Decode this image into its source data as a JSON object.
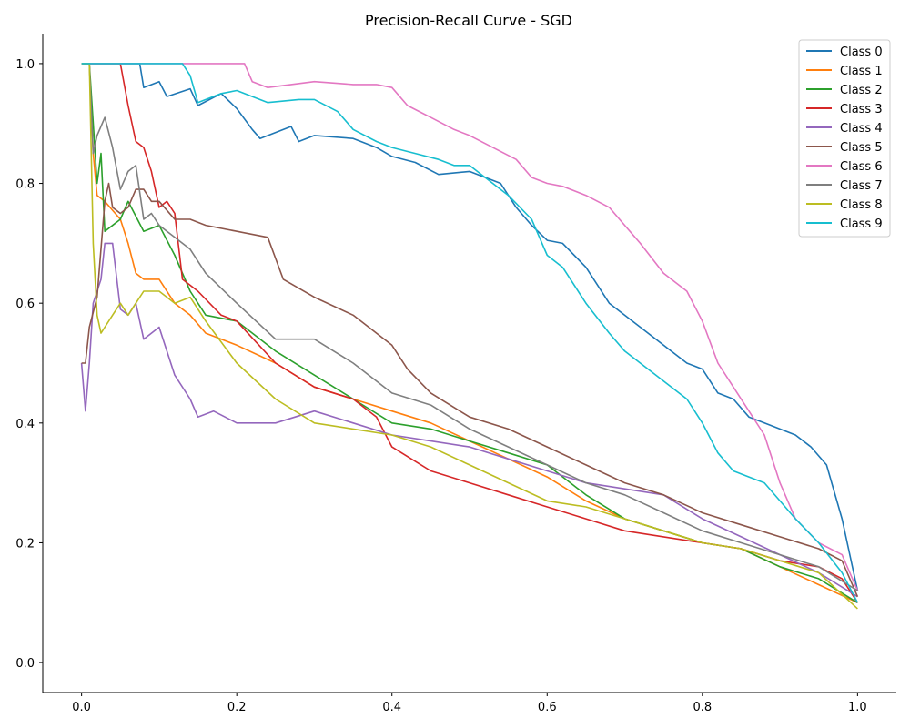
{
  "chart_data": {
    "type": "line",
    "title": "Precision-Recall Curve - SGD",
    "xlabel": "",
    "ylabel": "",
    "xlim": [
      -0.05,
      1.05
    ],
    "ylim": [
      -0.05,
      1.05
    ],
    "xticks": [
      0.0,
      0.2,
      0.4,
      0.6,
      0.8,
      1.0
    ],
    "xtick_labels": [
      "0.0",
      "0.2",
      "0.4",
      "0.6",
      "0.8",
      "1.0"
    ],
    "yticks": [
      0.0,
      0.2,
      0.4,
      0.6,
      0.8,
      1.0
    ],
    "ytick_labels": [
      "0.0",
      "0.2",
      "0.4",
      "0.6",
      "0.8",
      "1.0"
    ],
    "grid": false,
    "legend_position": "top-right",
    "series": [
      {
        "name": "Class 0",
        "color": "#1f77b4",
        "x": [
          0,
          0.075,
          0.08,
          0.1,
          0.11,
          0.14,
          0.15,
          0.18,
          0.2,
          0.22,
          0.23,
          0.27,
          0.28,
          0.3,
          0.35,
          0.38,
          0.4,
          0.43,
          0.46,
          0.5,
          0.54,
          0.56,
          0.58,
          0.6,
          0.62,
          0.65,
          0.68,
          0.72,
          0.75,
          0.78,
          0.8,
          0.82,
          0.84,
          0.86,
          0.88,
          0.9,
          0.92,
          0.94,
          0.96,
          0.98,
          1.0
        ],
        "y": [
          1.0,
          1.0,
          0.96,
          0.97,
          0.945,
          0.958,
          0.93,
          0.95,
          0.925,
          0.89,
          0.875,
          0.895,
          0.87,
          0.88,
          0.875,
          0.86,
          0.845,
          0.835,
          0.815,
          0.82,
          0.8,
          0.76,
          0.73,
          0.705,
          0.7,
          0.66,
          0.6,
          0.56,
          0.53,
          0.5,
          0.49,
          0.45,
          0.44,
          0.41,
          0.4,
          0.39,
          0.38,
          0.36,
          0.33,
          0.24,
          0.12
        ]
      },
      {
        "name": "Class 1",
        "color": "#ff7f0e",
        "x": [
          0,
          0.01,
          0.015,
          0.02,
          0.03,
          0.05,
          0.06,
          0.07,
          0.08,
          0.1,
          0.12,
          0.14,
          0.16,
          0.2,
          0.25,
          0.3,
          0.35,
          0.4,
          0.45,
          0.5,
          0.55,
          0.6,
          0.65,
          0.7,
          0.75,
          0.8,
          0.85,
          0.9,
          0.95,
          1.0
        ],
        "y": [
          1.0,
          1.0,
          0.85,
          0.78,
          0.77,
          0.74,
          0.7,
          0.65,
          0.64,
          0.64,
          0.6,
          0.58,
          0.55,
          0.53,
          0.5,
          0.46,
          0.44,
          0.42,
          0.4,
          0.37,
          0.34,
          0.31,
          0.27,
          0.24,
          0.22,
          0.2,
          0.19,
          0.16,
          0.13,
          0.1
        ]
      },
      {
        "name": "Class 2",
        "color": "#2ca02c",
        "x": [
          0,
          0.01,
          0.02,
          0.025,
          0.03,
          0.05,
          0.06,
          0.08,
          0.1,
          0.12,
          0.14,
          0.16,
          0.2,
          0.25,
          0.3,
          0.35,
          0.4,
          0.45,
          0.5,
          0.55,
          0.6,
          0.65,
          0.7,
          0.75,
          0.8,
          0.85,
          0.9,
          0.95,
          1.0
        ],
        "y": [
          1.0,
          1.0,
          0.8,
          0.85,
          0.72,
          0.74,
          0.77,
          0.72,
          0.73,
          0.68,
          0.62,
          0.58,
          0.57,
          0.52,
          0.48,
          0.44,
          0.4,
          0.39,
          0.37,
          0.35,
          0.33,
          0.28,
          0.24,
          0.22,
          0.2,
          0.19,
          0.16,
          0.14,
          0.1
        ]
      },
      {
        "name": "Class 3",
        "color": "#d62728",
        "x": [
          0,
          0.05,
          0.06,
          0.07,
          0.08,
          0.09,
          0.1,
          0.11,
          0.12,
          0.13,
          0.15,
          0.18,
          0.2,
          0.25,
          0.3,
          0.35,
          0.38,
          0.4,
          0.45,
          0.5,
          0.55,
          0.6,
          0.65,
          0.7,
          0.75,
          0.8,
          0.85,
          0.9,
          0.95,
          0.98,
          1.0
        ],
        "y": [
          1.0,
          1.0,
          0.93,
          0.87,
          0.86,
          0.82,
          0.76,
          0.77,
          0.75,
          0.64,
          0.62,
          0.58,
          0.57,
          0.5,
          0.46,
          0.44,
          0.41,
          0.36,
          0.32,
          0.3,
          0.28,
          0.26,
          0.24,
          0.22,
          0.21,
          0.2,
          0.19,
          0.17,
          0.16,
          0.14,
          0.1
        ]
      },
      {
        "name": "Class 4",
        "color": "#9467bd",
        "x": [
          0,
          0.005,
          0.01,
          0.015,
          0.02,
          0.025,
          0.03,
          0.04,
          0.05,
          0.06,
          0.07,
          0.08,
          0.09,
          0.1,
          0.11,
          0.12,
          0.14,
          0.15,
          0.17,
          0.2,
          0.25,
          0.3,
          0.35,
          0.4,
          0.45,
          0.5,
          0.55,
          0.6,
          0.65,
          0.7,
          0.75,
          0.8,
          0.85,
          0.9,
          0.95,
          1.0
        ],
        "y": [
          0.5,
          0.42,
          0.5,
          0.6,
          0.62,
          0.64,
          0.7,
          0.7,
          0.59,
          0.58,
          0.6,
          0.54,
          0.55,
          0.56,
          0.52,
          0.48,
          0.44,
          0.41,
          0.42,
          0.4,
          0.4,
          0.42,
          0.4,
          0.38,
          0.37,
          0.36,
          0.34,
          0.32,
          0.3,
          0.29,
          0.28,
          0.24,
          0.21,
          0.18,
          0.15,
          0.11
        ]
      },
      {
        "name": "Class 5",
        "color": "#8c564b",
        "x": [
          0,
          0.005,
          0.01,
          0.02,
          0.03,
          0.035,
          0.04,
          0.05,
          0.06,
          0.07,
          0.08,
          0.09,
          0.1,
          0.12,
          0.14,
          0.16,
          0.2,
          0.24,
          0.26,
          0.3,
          0.35,
          0.4,
          0.42,
          0.45,
          0.5,
          0.55,
          0.6,
          0.65,
          0.7,
          0.75,
          0.8,
          0.85,
          0.9,
          0.95,
          0.98,
          1.0
        ],
        "y": [
          0.5,
          0.5,
          0.56,
          0.61,
          0.77,
          0.8,
          0.76,
          0.75,
          0.76,
          0.79,
          0.79,
          0.77,
          0.77,
          0.74,
          0.74,
          0.73,
          0.72,
          0.71,
          0.64,
          0.61,
          0.58,
          0.53,
          0.49,
          0.45,
          0.41,
          0.39,
          0.36,
          0.33,
          0.3,
          0.28,
          0.25,
          0.23,
          0.21,
          0.19,
          0.17,
          0.11
        ]
      },
      {
        "name": "Class 6",
        "color": "#e377c2",
        "x": [
          0,
          0.21,
          0.22,
          0.24,
          0.3,
          0.35,
          0.38,
          0.4,
          0.42,
          0.45,
          0.48,
          0.5,
          0.53,
          0.56,
          0.58,
          0.6,
          0.62,
          0.65,
          0.68,
          0.7,
          0.72,
          0.75,
          0.78,
          0.8,
          0.82,
          0.84,
          0.86,
          0.88,
          0.9,
          0.92,
          0.95,
          0.98,
          1.0
        ],
        "y": [
          1.0,
          1.0,
          0.97,
          0.96,
          0.97,
          0.965,
          0.965,
          0.96,
          0.93,
          0.91,
          0.89,
          0.88,
          0.86,
          0.84,
          0.81,
          0.8,
          0.795,
          0.78,
          0.76,
          0.73,
          0.7,
          0.65,
          0.62,
          0.57,
          0.5,
          0.46,
          0.42,
          0.38,
          0.3,
          0.24,
          0.2,
          0.18,
          0.12
        ]
      },
      {
        "name": "Class 7",
        "color": "#7f7f7f",
        "x": [
          0,
          0.01,
          0.015,
          0.02,
          0.03,
          0.04,
          0.05,
          0.06,
          0.07,
          0.08,
          0.09,
          0.1,
          0.12,
          0.14,
          0.16,
          0.2,
          0.25,
          0.3,
          0.35,
          0.4,
          0.45,
          0.5,
          0.55,
          0.6,
          0.65,
          0.7,
          0.75,
          0.8,
          0.85,
          0.9,
          0.95,
          1.0
        ],
        "y": [
          1.0,
          1.0,
          0.85,
          0.88,
          0.91,
          0.86,
          0.79,
          0.82,
          0.83,
          0.74,
          0.75,
          0.73,
          0.71,
          0.69,
          0.65,
          0.6,
          0.54,
          0.54,
          0.5,
          0.45,
          0.43,
          0.39,
          0.36,
          0.33,
          0.3,
          0.28,
          0.25,
          0.22,
          0.2,
          0.18,
          0.16,
          0.12
        ]
      },
      {
        "name": "Class 8",
        "color": "#bcbd22",
        "x": [
          0,
          0.01,
          0.015,
          0.02,
          0.025,
          0.03,
          0.04,
          0.05,
          0.06,
          0.07,
          0.08,
          0.1,
          0.12,
          0.14,
          0.16,
          0.2,
          0.25,
          0.3,
          0.35,
          0.4,
          0.45,
          0.5,
          0.55,
          0.6,
          0.65,
          0.7,
          0.75,
          0.8,
          0.85,
          0.9,
          0.95,
          1.0
        ],
        "y": [
          1.0,
          1.0,
          0.7,
          0.58,
          0.55,
          0.56,
          0.58,
          0.6,
          0.58,
          0.6,
          0.62,
          0.62,
          0.6,
          0.61,
          0.57,
          0.5,
          0.44,
          0.4,
          0.39,
          0.38,
          0.36,
          0.33,
          0.3,
          0.27,
          0.26,
          0.24,
          0.22,
          0.2,
          0.19,
          0.17,
          0.15,
          0.09
        ]
      },
      {
        "name": "Class 9",
        "color": "#17becf",
        "x": [
          0,
          0.13,
          0.14,
          0.15,
          0.18,
          0.2,
          0.22,
          0.24,
          0.28,
          0.3,
          0.33,
          0.35,
          0.38,
          0.4,
          0.43,
          0.46,
          0.48,
          0.5,
          0.52,
          0.55,
          0.58,
          0.6,
          0.62,
          0.65,
          0.68,
          0.7,
          0.72,
          0.75,
          0.78,
          0.8,
          0.82,
          0.84,
          0.86,
          0.88,
          0.9,
          0.92,
          0.95,
          0.98,
          1.0
        ],
        "y": [
          1.0,
          1.0,
          0.98,
          0.935,
          0.95,
          0.955,
          0.945,
          0.935,
          0.94,
          0.94,
          0.92,
          0.89,
          0.87,
          0.86,
          0.85,
          0.84,
          0.83,
          0.83,
          0.81,
          0.78,
          0.74,
          0.68,
          0.66,
          0.6,
          0.55,
          0.52,
          0.5,
          0.47,
          0.44,
          0.4,
          0.35,
          0.32,
          0.31,
          0.3,
          0.27,
          0.24,
          0.2,
          0.15,
          0.1
        ]
      }
    ]
  }
}
